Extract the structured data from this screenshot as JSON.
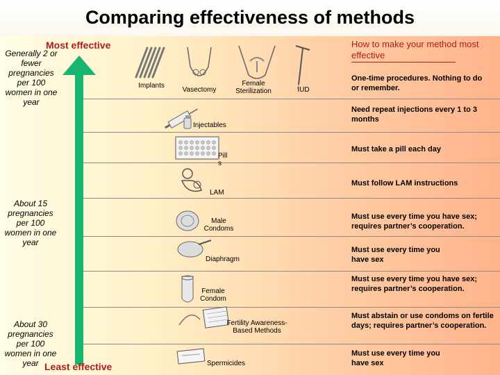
{
  "title": "Comparing effectiveness of methods",
  "most_effective": "Most effective",
  "least_effective": "Least effective",
  "advice_header": "How to make your method most effective",
  "top_note": "Generally 2 or fewer pregnancies per 100 women in one year",
  "middle_note": "About 15 pregnancies per 100 women in one year",
  "bottom_note": "About 30 pregnancies per 100 women in one year",
  "methods": {
    "implants": "Implants",
    "vasectomy": "Vasectomy",
    "female_sterilization": "Female Sterilization",
    "iud": "IUD",
    "injectables": "Injectables",
    "pills": "Pill s",
    "lam": "LAM",
    "male_condoms": "Male Condoms",
    "diaphragm": "Diaphragm",
    "female_condom": "Female Condom",
    "fertility_awareness": "Fertility Awareness-Based Methods",
    "spermicides": "Spermicides"
  },
  "advice": {
    "one_time": "One-time procedures. Nothing to do or remember.",
    "injections": "Need repeat injections every 1 to 3 months",
    "pill": "Must take a pill each day",
    "lam": "Must follow LAM instructions",
    "male_condoms": "Must use every time you have sex; requires partner’s cooperation.",
    "diaphragm": "Must use every time you have sex",
    "female_condom": "Must use every time you have sex; requires partner’s cooperation.",
    "fertility": "Must abstain or use condoms on fertile days; requires partner’s cooperation.",
    "spermicides": "Must use every time you have sex"
  },
  "colors": {
    "arrow": "#17b56f",
    "effect_label": "#b31a1a"
  }
}
